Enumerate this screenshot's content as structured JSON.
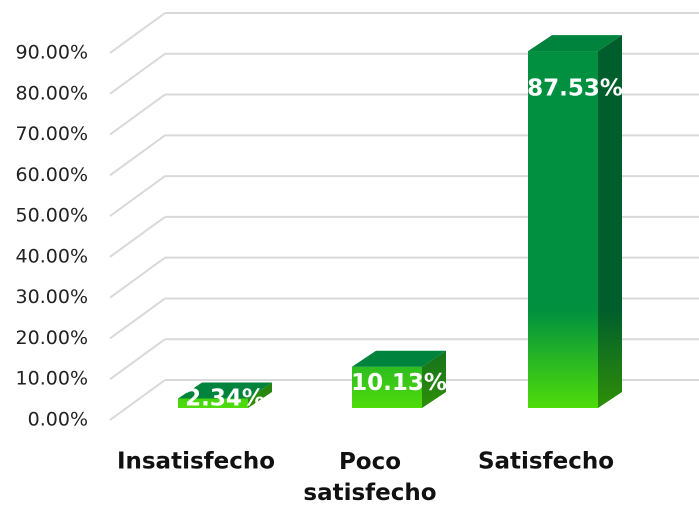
{
  "chart_data": {
    "type": "bar3d",
    "categories": [
      "Insatisfecho",
      "Poco satisfecho",
      "Satisfecho"
    ],
    "values": [
      2.34,
      10.13,
      87.53
    ],
    "value_labels": [
      "2.34%",
      "10.13%",
      "87.53%"
    ],
    "color": "#00903f",
    "ylim": [
      0,
      90
    ],
    "yticks": [
      {
        "value": 0,
        "label": "0.00%"
      },
      {
        "value": 10,
        "label": "10.00%"
      },
      {
        "value": 20,
        "label": "20.00%"
      },
      {
        "value": 30,
        "label": "30.00%"
      },
      {
        "value": 40,
        "label": "40.00%"
      },
      {
        "value": 50,
        "label": "50.00%"
      },
      {
        "value": 60,
        "label": "60.00%"
      },
      {
        "value": 70,
        "label": "70.00%"
      },
      {
        "value": 80,
        "label": "80.00%"
      },
      {
        "value": 90,
        "label": "90.00%"
      }
    ],
    "grid": true
  }
}
